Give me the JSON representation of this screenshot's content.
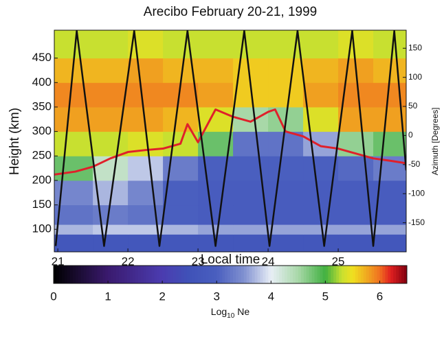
{
  "chart_data": {
    "type": "heatmap",
    "title": "Arecibo   February 20-21, 1999",
    "x_label": "Local time",
    "y_label": "Height (km)",
    "y2_label": "Azimuth [Degrees]",
    "xlim": [
      20.95,
      25.97
    ],
    "ylim": [
      54,
      507
    ],
    "y2lim": [
      -200,
      181
    ],
    "xticks": [
      21,
      22,
      23,
      24,
      25
    ],
    "yticks": [
      100,
      150,
      200,
      250,
      300,
      350,
      400,
      450
    ],
    "y2ticks": [
      -150,
      -100,
      -50,
      0,
      50,
      100,
      150
    ],
    "x_edges": [
      20.95,
      21.5,
      22,
      22.5,
      23,
      23.5,
      24,
      24.5,
      25,
      25.5,
      25.97
    ],
    "height_edges": [
      54,
      90,
      110,
      150,
      200,
      250,
      300,
      350,
      400,
      450,
      507
    ],
    "z": [
      [
        2.7,
        2.7,
        2.7,
        2.7,
        2.7,
        2.7,
        2.7,
        2.7,
        2.7,
        2.7
      ],
      [
        3.7,
        3.8,
        3.8,
        3.7,
        3.6,
        3.6,
        3.6,
        3.6,
        3.6,
        3.6
      ],
      [
        3.2,
        3.3,
        3.2,
        3.0,
        2.9,
        2.9,
        2.9,
        2.9,
        2.9,
        2.9
      ],
      [
        3.4,
        3.7,
        3.4,
        3.0,
        2.9,
        2.9,
        2.9,
        2.9,
        2.9,
        2.9
      ],
      [
        4.8,
        4.3,
        3.8,
        3.3,
        3.0,
        3.0,
        3.0,
        3.0,
        3.1,
        3.3
      ],
      [
        5.3,
        5.3,
        5.4,
        5.3,
        4.8,
        3.2,
        3.2,
        3.6,
        4.6,
        4.8
      ],
      [
        5.8,
        5.8,
        5.8,
        5.7,
        5.4,
        4.5,
        4.6,
        5.4,
        5.8,
        5.8
      ],
      [
        5.9,
        5.9,
        5.9,
        5.9,
        5.8,
        5.6,
        5.6,
        5.8,
        5.9,
        5.9
      ],
      [
        5.7,
        5.7,
        5.8,
        5.7,
        5.7,
        5.6,
        5.6,
        5.7,
        5.8,
        5.7
      ],
      [
        5.3,
        5.3,
        5.4,
        5.3,
        5.3,
        5.3,
        5.3,
        5.3,
        5.4,
        5.3
      ]
    ],
    "peak_line": {
      "color": "#e0202a",
      "x": [
        20.95,
        21.25,
        21.5,
        21.75,
        22,
        22.25,
        22.5,
        22.75,
        22.85,
        23,
        23.25,
        23.5,
        23.75,
        24,
        24.1,
        24.25,
        24.5,
        24.75,
        25,
        25.25,
        25.5,
        25.75,
        25.97
      ],
      "values": [
        212,
        218,
        228,
        245,
        258,
        262,
        265,
        275,
        315,
        278,
        345,
        330,
        320,
        340,
        345,
        300,
        290,
        270,
        265,
        255,
        245,
        240,
        235
      ]
    },
    "azimuth_line": {
      "color": "#111111",
      "axis": "y2",
      "x": [
        20.97,
        21.27,
        21.66,
        22.09,
        22.45,
        22.85,
        23.25,
        23.66,
        24.02,
        24.42,
        24.8,
        25.2,
        25.5,
        25.8,
        25.97
      ],
      "values": [
        -190,
        180,
        -190,
        180,
        -190,
        180,
        -190,
        180,
        -190,
        180,
        -190,
        180,
        -190,
        180,
        -60
      ]
    },
    "colorbar": {
      "clim": [
        0,
        6.5
      ],
      "ticks": [
        0,
        1,
        2,
        3,
        4,
        5,
        6
      ],
      "label": "Log",
      "label_sub": "10",
      "label_rest": "Ne"
    },
    "colormap": [
      {
        "value": 0,
        "color": "#000000"
      },
      {
        "value": 1,
        "color": "#3a1a6e"
      },
      {
        "value": 2,
        "color": "#4b3cb0"
      },
      {
        "value": 2.5,
        "color": "#3f52b8"
      },
      {
        "value": 3,
        "color": "#4a5fbf"
      },
      {
        "value": 3.5,
        "color": "#8090d0"
      },
      {
        "value": 4,
        "color": "#e8eef6"
      },
      {
        "value": 4.5,
        "color": "#a8d8a8"
      },
      {
        "value": 5,
        "color": "#40b040"
      },
      {
        "value": 5.3,
        "color": "#c8e030"
      },
      {
        "value": 5.5,
        "color": "#f0e020"
      },
      {
        "value": 5.8,
        "color": "#f0a020"
      },
      {
        "value": 6,
        "color": "#f07020"
      },
      {
        "value": 6.2,
        "color": "#e02020"
      },
      {
        "value": 6.5,
        "color": "#800010"
      }
    ]
  }
}
